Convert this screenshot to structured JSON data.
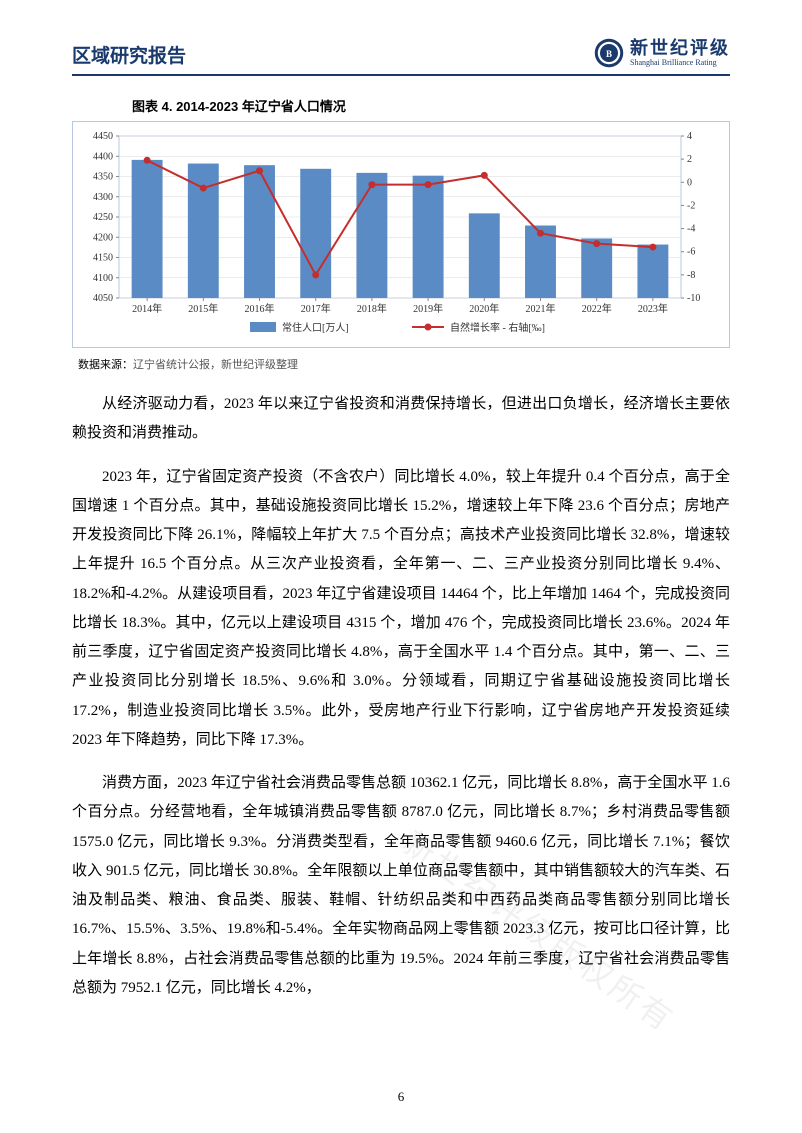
{
  "header": {
    "title": "区域研究报告",
    "brand_cn": "新世纪评级",
    "brand_en": "Shanghai Brilliance Rating"
  },
  "chart": {
    "type": "bar+line",
    "title": "图表 4.   2014-2023 年辽宁省人口情况",
    "categories": [
      "2014年",
      "2015年",
      "2016年",
      "2017年",
      "2018年",
      "2019年",
      "2020年",
      "2021年",
      "2022年",
      "2023年"
    ],
    "bar_series": {
      "name": "常住人口[万人]",
      "values": [
        4391,
        4382,
        4378,
        4369,
        4359,
        4352,
        4259,
        4229,
        4197,
        4182
      ],
      "color": "#5b8bc5"
    },
    "line_series": {
      "name": "自然增长率 - 右轴[‰]",
      "values": [
        1.9,
        -0.5,
        1.0,
        -8.0,
        -0.2,
        -0.2,
        0.6,
        -4.4,
        -5.3,
        -5.6
      ],
      "color": "#c42e2e",
      "marker": "circle"
    },
    "y_left": {
      "min": 4050,
      "max": 4450,
      "step": 50,
      "label": ""
    },
    "y_right": {
      "min": -10,
      "max": 4,
      "step": 2,
      "label": ""
    },
    "background_color": "#ffffff",
    "plot_border_color": "#b8c8e0",
    "grid_color": "#d9d9d9",
    "tick_font_size": 10,
    "legend_font_size": 10,
    "bar_width": 0.55,
    "source_label": "数据来源：",
    "source_text": "辽宁省统计公报，新世纪评级整理"
  },
  "paragraphs": [
    "从经济驱动力看，2023 年以来辽宁省投资和消费保持增长，但进出口负增长，经济增长主要依赖投资和消费推动。",
    "2023 年，辽宁省固定资产投资（不含农户）同比增长 4.0%，较上年提升 0.4 个百分点，高于全国增速 1 个百分点。其中，基础设施投资同比增长 15.2%，增速较上年下降 23.6 个百分点；房地产开发投资同比下降 26.1%，降幅较上年扩大 7.5 个百分点；高技术产业投资同比增长 32.8%，增速较上年提升 16.5 个百分点。从三次产业投资看，全年第一、二、三产业投资分别同比增长 9.4%、18.2%和-4.2%。从建设项目看，2023 年辽宁省建设项目 14464 个，比上年增加 1464 个，完成投资同比增长 18.3%。其中，亿元以上建设项目 4315 个，增加 476 个，完成投资同比增长 23.6%。2024 年前三季度，辽宁省固定资产投资同比增长 4.8%，高于全国水平 1.4 个百分点。其中，第一、二、三产业投资同比分别增长 18.5%、9.6%和 3.0%。分领域看，同期辽宁省基础设施投资同比增长 17.2%，制造业投资同比增长 3.5%。此外，受房地产行业下行影响，辽宁省房地产开发投资延续 2023 年下降趋势，同比下降 17.3%。",
    "消费方面，2023 年辽宁省社会消费品零售总额 10362.1 亿元，同比增长 8.8%，高于全国水平 1.6 个百分点。分经营地看，全年城镇消费品零售额 8787.0 亿元，同比增长 8.7%；乡村消费品零售额 1575.0 亿元，同比增长 9.3%。分消费类型看，全年商品零售额 9460.6 亿元，同比增长 7.1%；餐饮收入 901.5 亿元，同比增长 30.8%。全年限额以上单位商品零售额中，其中销售额较大的汽车类、石油及制品类、粮油、食品类、服装、鞋帽、针纺织品类和中西药品类商品零售额分别同比增长 16.7%、15.5%、3.5%、19.8%和-5.4%。全年实物商品网上零售额 2023.3 亿元，按可比口径计算，比上年增长 8.8%，占社会消费品零售总额的比重为 19.5%。2024 年前三季度，辽宁省社会消费品零售总额为 7952.1 亿元，同比增长 4.2%，"
  ],
  "page_number": "6",
  "watermark": "新世纪评级版权所有"
}
